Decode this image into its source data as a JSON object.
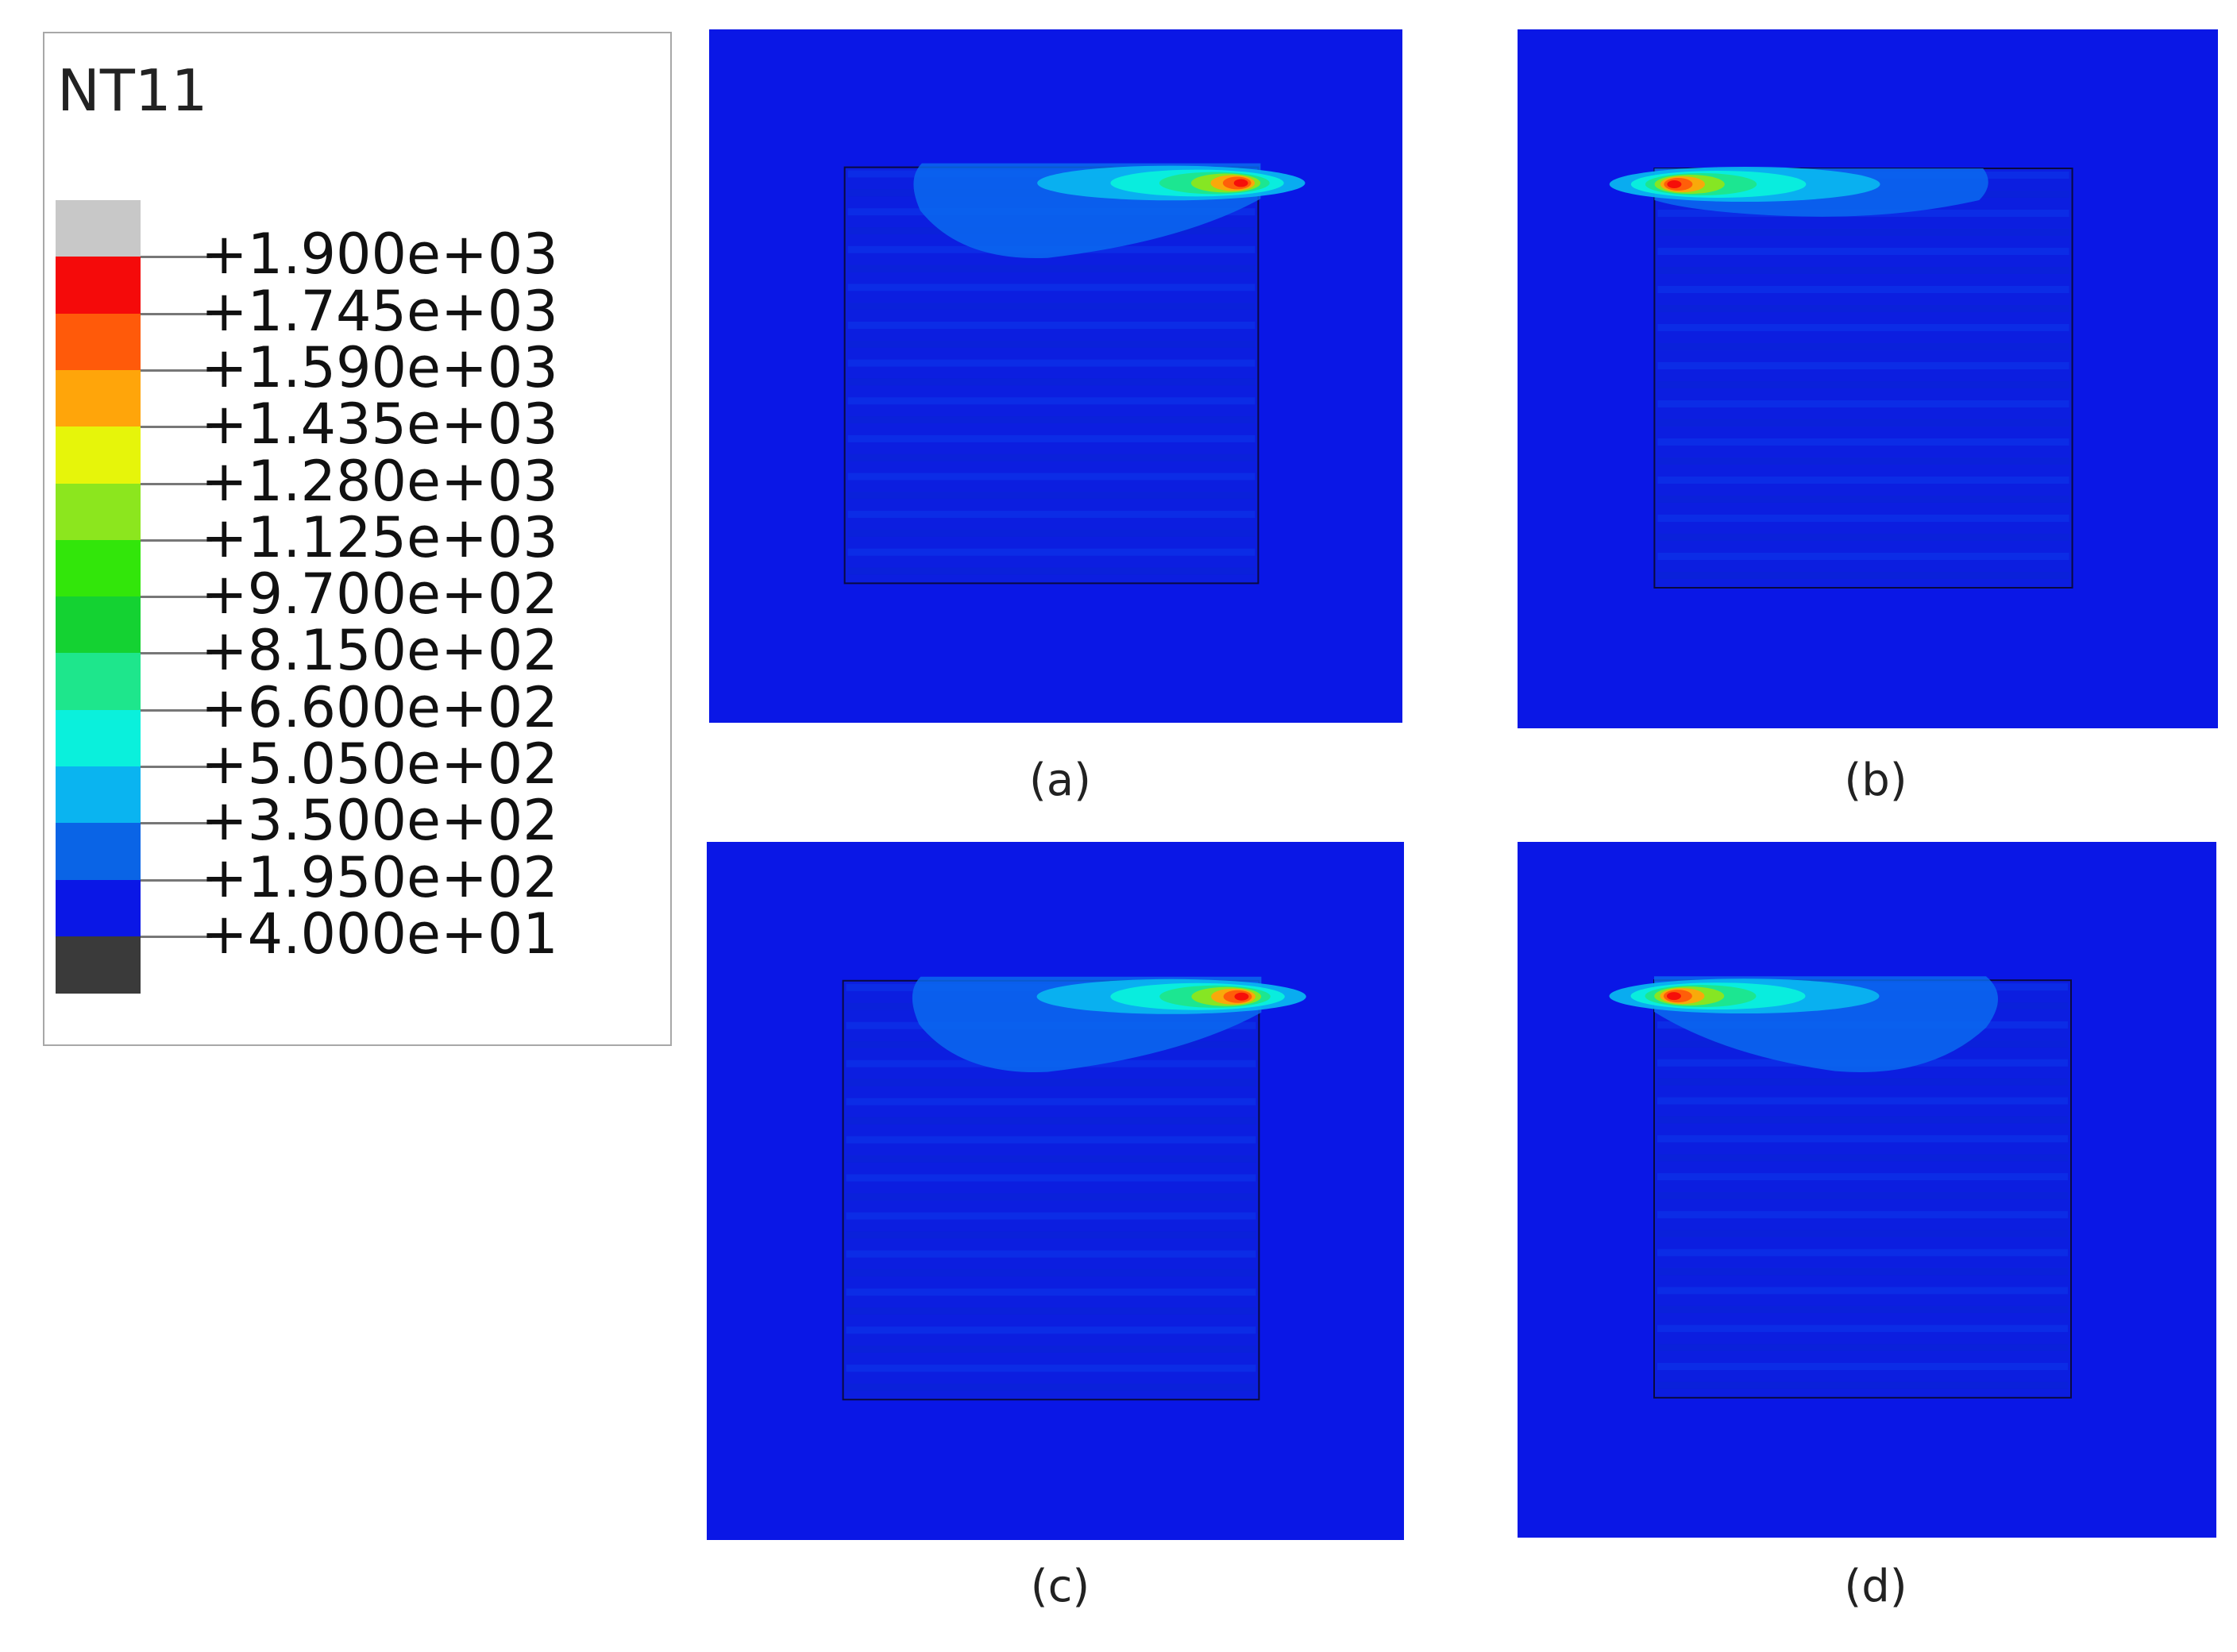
{
  "legend": {
    "title": "NT11",
    "entries": [
      {
        "label": "+1.900e+03",
        "color": "#c8c8c8"
      },
      {
        "label": "+1.745e+03",
        "color": "#f50a0a"
      },
      {
        "label": "+1.590e+03",
        "color": "#ff5a0a"
      },
      {
        "label": "+1.435e+03",
        "color": "#ffa50a"
      },
      {
        "label": "+1.280e+03",
        "color": "#e6f50a"
      },
      {
        "label": "+1.125e+03",
        "color": "#8ce61e"
      },
      {
        "label": "+9.700e+02",
        "color": "#32e60a"
      },
      {
        "label": "+8.150e+02",
        "color": "#14d232"
      },
      {
        "label": "+6.600e+02",
        "color": "#1ee68c"
      },
      {
        "label": "+5.050e+02",
        "color": "#0af0dc"
      },
      {
        "label": "+3.500e+02",
        "color": "#0ab4f0"
      },
      {
        "label": "+1.950e+02",
        "color": "#0a64e6"
      },
      {
        "label": "+4.000e+01",
        "color": "#0a17e6"
      }
    ],
    "under_color": "#3a3a3a"
  },
  "panels": [
    {
      "caption": "(a)",
      "hotspot_side": "right"
    },
    {
      "caption": "(b)",
      "hotspot_side": "left"
    },
    {
      "caption": "(c)",
      "hotspot_side": "right"
    },
    {
      "caption": "(d)",
      "hotspot_side": "left"
    }
  ]
}
